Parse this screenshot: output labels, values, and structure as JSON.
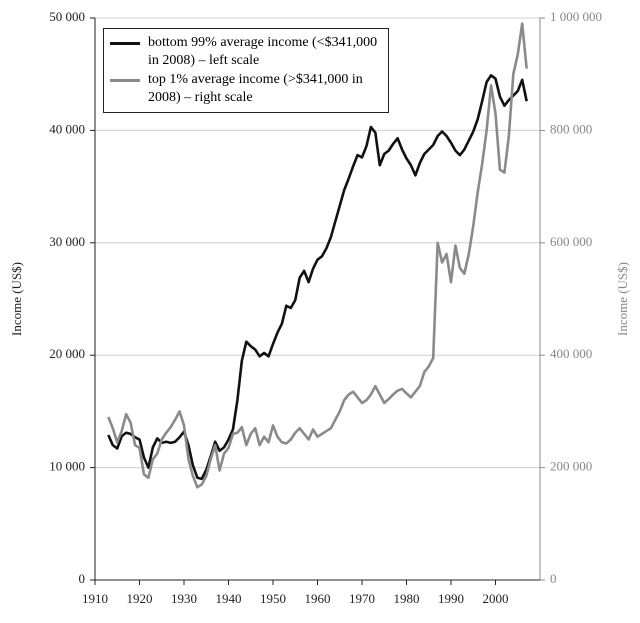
{
  "chart_data": {
    "type": "line",
    "ylabel": "Income (US$)",
    "y2label": "Income (US$)",
    "x": [
      1913,
      1914,
      1915,
      1916,
      1917,
      1918,
      1919,
      1920,
      1921,
      1922,
      1923,
      1924,
      1925,
      1926,
      1927,
      1928,
      1929,
      1930,
      1931,
      1932,
      1933,
      1934,
      1935,
      1936,
      1937,
      1938,
      1939,
      1940,
      1941,
      1942,
      1943,
      1944,
      1945,
      1946,
      1947,
      1948,
      1949,
      1950,
      1951,
      1952,
      1953,
      1954,
      1955,
      1956,
      1957,
      1958,
      1959,
      1960,
      1961,
      1962,
      1963,
      1964,
      1965,
      1966,
      1967,
      1968,
      1969,
      1970,
      1971,
      1972,
      1973,
      1974,
      1975,
      1976,
      1977,
      1978,
      1979,
      1980,
      1981,
      1982,
      1983,
      1984,
      1985,
      1986,
      1987,
      1988,
      1989,
      1990,
      1991,
      1992,
      1993,
      1994,
      1995,
      1996,
      1997,
      1998,
      1999,
      2000,
      2001,
      2002,
      2003,
      2004,
      2005,
      2006,
      2007
    ],
    "series": [
      {
        "name": "bottom 99% average income (<$341,000 in 2008) – left scale",
        "color": "#111111",
        "axis": "y",
        "values": [
          12900,
          12000,
          11700,
          12800,
          13100,
          13000,
          12700,
          12500,
          10900,
          10000,
          11800,
          12600,
          12200,
          12300,
          12200,
          12300,
          12700,
          13200,
          12000,
          10200,
          9100,
          9000,
          9800,
          11000,
          12300,
          11500,
          11800,
          12500,
          13400,
          16000,
          19500,
          21200,
          20800,
          20500,
          19900,
          20200,
          19900,
          21000,
          22000,
          22800,
          24400,
          24200,
          24900,
          26900,
          27500,
          26500,
          27700,
          28500,
          28800,
          29500,
          30500,
          31900,
          33300,
          34700,
          35700,
          36800,
          37800,
          37600,
          38600,
          40300,
          39800,
          36900,
          37900,
          38200,
          38800,
          39300,
          38300,
          37500,
          36900,
          36000,
          37100,
          37900,
          38300,
          38700,
          39500,
          39900,
          39500,
          38900,
          38200,
          37800,
          38300,
          39100,
          39900,
          41000,
          42600,
          44300,
          44900,
          44600,
          43000,
          42200,
          42700,
          43100,
          43500,
          44500,
          42600
        ]
      },
      {
        "name": "top 1% average income (>$341,000 in 2008) – right scale",
        "color": "#8a8a8a",
        "axis": "y2",
        "values": [
          290000,
          270000,
          245000,
          265000,
          295000,
          280000,
          240000,
          235000,
          188000,
          182000,
          215000,
          225000,
          250000,
          262000,
          272000,
          285000,
          300000,
          275000,
          215000,
          185000,
          165000,
          170000,
          185000,
          215000,
          240000,
          195000,
          225000,
          235000,
          260000,
          262000,
          272000,
          240000,
          260000,
          270000,
          240000,
          255000,
          245000,
          275000,
          255000,
          245000,
          243000,
          250000,
          262000,
          270000,
          260000,
          250000,
          268000,
          255000,
          260000,
          265000,
          270000,
          285000,
          300000,
          320000,
          330000,
          335000,
          325000,
          315000,
          320000,
          330000,
          345000,
          330000,
          315000,
          322000,
          330000,
          337000,
          340000,
          332000,
          325000,
          335000,
          345000,
          370000,
          380000,
          395000,
          600000,
          565000,
          580000,
          530000,
          595000,
          555000,
          545000,
          580000,
          630000,
          690000,
          740000,
          800000,
          880000,
          830000,
          730000,
          725000,
          790000,
          900000,
          935000,
          990000,
          910000
        ]
      }
    ],
    "xlim": [
      1910,
      2010
    ],
    "xticks": [
      1910,
      1920,
      1930,
      1940,
      1950,
      1960,
      1970,
      1980,
      1990,
      2000
    ],
    "ylim": [
      0,
      50000
    ],
    "yticks": [
      0,
      {
        "value": 10000,
        "label": "10 000"
      },
      {
        "value": 20000,
        "label": "20 000"
      },
      {
        "value": 30000,
        "label": "30 000"
      },
      {
        "value": 40000,
        "label": "40 000"
      },
      {
        "value": 50000,
        "label": "50 000"
      }
    ],
    "y2lim": [
      0,
      1000000
    ],
    "y2ticks": [
      0,
      {
        "value": 200000,
        "label": "200 000"
      },
      {
        "value": 400000,
        "label": "400 000"
      },
      {
        "value": 600000,
        "label": "600 000"
      },
      {
        "value": 800000,
        "label": "800 000"
      },
      {
        "value": 1000000,
        "label": "1 000 000"
      }
    ],
    "grid": true,
    "legend": "upper left"
  }
}
